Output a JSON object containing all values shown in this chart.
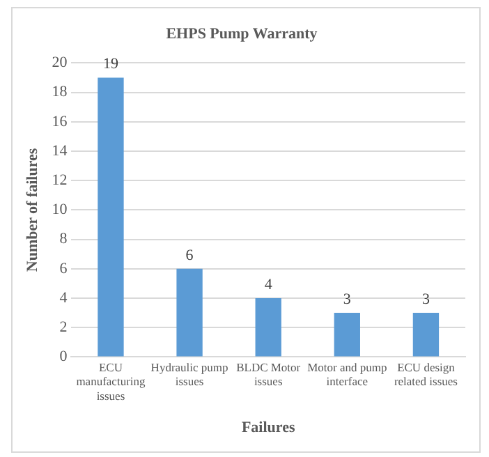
{
  "chart_data": {
    "type": "bar",
    "title": "EHPS Pump Warranty",
    "xlabel": "Failures",
    "ylabel": "Number of failures",
    "categories": [
      "ECU manufacturing issues",
      "Hydraulic pump issues",
      "BLDC Motor issues",
      "Motor and pump interface",
      "ECU design related issues"
    ],
    "values": [
      19,
      6,
      4,
      3,
      3
    ],
    "color": "#5b9bd5",
    "ylim": [
      0,
      20
    ],
    "yticks": [
      0,
      2,
      4,
      6,
      8,
      10,
      12,
      14,
      16,
      18,
      20
    ],
    "grid": "y",
    "data_labels": true,
    "legend": false
  }
}
